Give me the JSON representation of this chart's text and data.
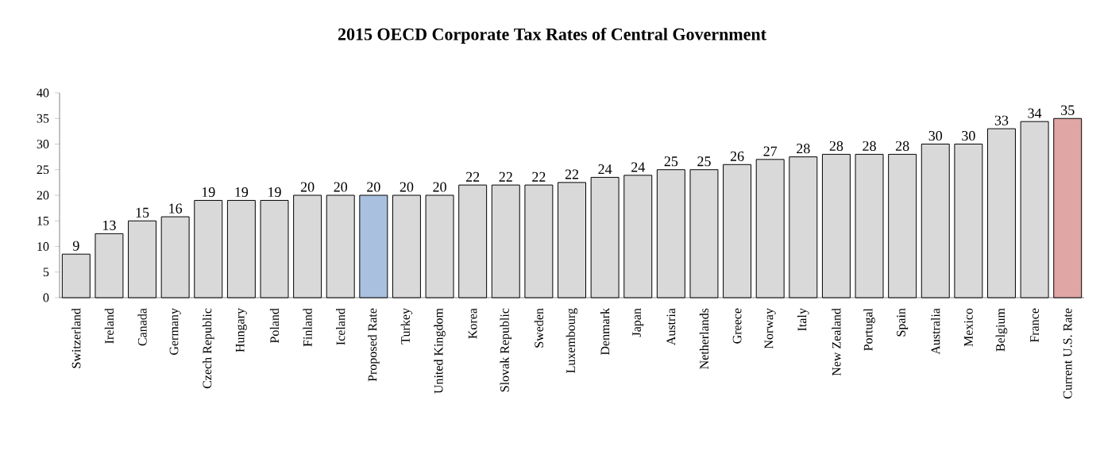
{
  "chart_data": {
    "type": "bar",
    "title": "2015 OECD Corporate Tax Rates of Central Government",
    "categories": [
      "Switzerland",
      "Ireland",
      "Canada",
      "Germany",
      "Czech Republic",
      "Hungary",
      "Poland",
      "Finland",
      "Iceland",
      "Proposed Rate",
      "Turkey",
      "United Kingdom",
      "Korea",
      "Slovak Republic",
      "Sweden",
      "Luxembourg",
      "Denmark",
      "Japan",
      "Austria",
      "Netherlands",
      "Greece",
      "Norway",
      "Italy",
      "New Zealand",
      "Portugal",
      "Spain",
      "Australia",
      "Mexico",
      "Belgium",
      "France",
      "Current U.S. Rate"
    ],
    "values": [
      8.5,
      12.5,
      15,
      15.8,
      19,
      19,
      19,
      20,
      20,
      20,
      20,
      20,
      22,
      22,
      22,
      22.5,
      23.5,
      23.9,
      25,
      25,
      26,
      27,
      27.5,
      28,
      28,
      28,
      30,
      30,
      33,
      34.4,
      35
    ],
    "value_labels": [
      "9",
      "13",
      "15",
      "16",
      "19",
      "19",
      "19",
      "20",
      "20",
      "20",
      "20",
      "20",
      "22",
      "22",
      "22",
      "22",
      "24",
      "24",
      "25",
      "25",
      "26",
      "27",
      "28",
      "28",
      "28",
      "28",
      "30",
      "30",
      "33",
      "34",
      "35"
    ],
    "colors": [
      "#d9d9d9",
      "#d9d9d9",
      "#d9d9d9",
      "#d9d9d9",
      "#d9d9d9",
      "#d9d9d9",
      "#d9d9d9",
      "#d9d9d9",
      "#d9d9d9",
      "#a9c1de",
      "#d9d9d9",
      "#d9d9d9",
      "#d9d9d9",
      "#d9d9d9",
      "#d9d9d9",
      "#d9d9d9",
      "#d9d9d9",
      "#d9d9d9",
      "#d9d9d9",
      "#d9d9d9",
      "#d9d9d9",
      "#d9d9d9",
      "#d9d9d9",
      "#d9d9d9",
      "#d9d9d9",
      "#d9d9d9",
      "#d9d9d9",
      "#d9d9d9",
      "#d9d9d9",
      "#d9d9d9",
      "#e0a6a5"
    ],
    "ylim": [
      0,
      40
    ],
    "yticks": [
      0,
      5,
      10,
      15,
      20,
      25,
      30,
      35,
      40
    ],
    "grid": false
  }
}
